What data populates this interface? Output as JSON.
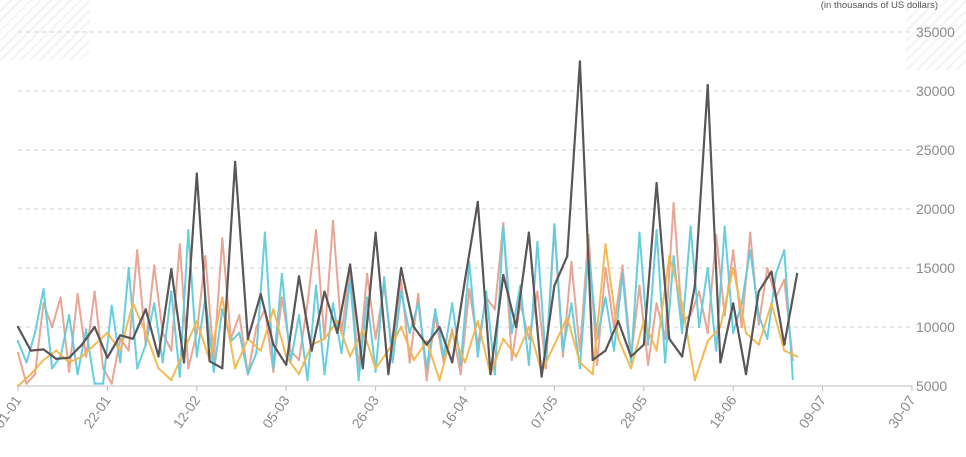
{
  "chart_data": {
    "type": "line",
    "unit_label": "(in thousands of US dollars)",
    "x_tick_labels": [
      "01-01",
      "22-01",
      "12-02",
      "05-03",
      "26-03",
      "16-04",
      "07-05",
      "28-05",
      "18-06",
      "09-07",
      "30-07"
    ],
    "xlim": [
      0,
      210
    ],
    "ylim": [
      5000,
      35000
    ],
    "y_ticks": [
      5000,
      10000,
      15000,
      20000,
      25000,
      30000,
      35000
    ],
    "grid": true,
    "legend": false,
    "series": [
      {
        "color": "#e8a090",
        "x": [
          0,
          2,
          4,
          6,
          8,
          10,
          12,
          14,
          16,
          18,
          20,
          22,
          24,
          26,
          28,
          30,
          32,
          34,
          36,
          38,
          40,
          42,
          44,
          46,
          48,
          50,
          52,
          54,
          56,
          58,
          60,
          62,
          64,
          66,
          68,
          70,
          72,
          74,
          76,
          78,
          80,
          82,
          84,
          86,
          88,
          90,
          92,
          94,
          96,
          98,
          100,
          102,
          104,
          106,
          108,
          110,
          112,
          114,
          116,
          118,
          120,
          122,
          124,
          126,
          128,
          130,
          132,
          134,
          136,
          138,
          140,
          142,
          144,
          146,
          148,
          150,
          152,
          154,
          156,
          158,
          160,
          162,
          164,
          166,
          168,
          170,
          172,
          174,
          176,
          178,
          180,
          182
        ],
        "values": [
          7800,
          5200,
          6000,
          12000,
          10000,
          12500,
          6200,
          12800,
          7500,
          13000,
          6500,
          5200,
          9000,
          8000,
          16500,
          8500,
          15200,
          9500,
          8000,
          17000,
          6500,
          9500,
          16000,
          7200,
          17500,
          9000,
          11000,
          6000,
          10000,
          11500,
          6200,
          12500,
          8000,
          7200,
          12000,
          18200,
          9000,
          19000,
          9500,
          15000,
          6500,
          14500,
          9000,
          13500,
          8000,
          14000,
          7000,
          12800,
          5500,
          11000,
          7000,
          9800,
          6000,
          13200,
          8500,
          12500,
          11500,
          18800,
          7200,
          12000,
          9000,
          13000,
          6500,
          18500,
          7500,
          15500,
          8000,
          17800,
          6800,
          15000,
          10000,
          15200,
          7500,
          13500,
          6800,
          12000,
          9000,
          20500,
          10500,
          11000,
          13000,
          9500,
          17800,
          11000,
          16500,
          10000,
          18000,
          10200,
          15000,
          12500,
          14000,
          7200
        ]
      },
      {
        "color": "#5fcbdc",
        "x": [
          0,
          2,
          4,
          6,
          8,
          10,
          12,
          14,
          16,
          18,
          20,
          22,
          24,
          26,
          28,
          30,
          32,
          34,
          36,
          38,
          40,
          42,
          44,
          46,
          48,
          50,
          52,
          54,
          56,
          58,
          60,
          62,
          64,
          66,
          68,
          70,
          72,
          74,
          76,
          78,
          80,
          82,
          84,
          86,
          88,
          90,
          92,
          94,
          96,
          98,
          100,
          102,
          104,
          106,
          108,
          110,
          112,
          114,
          116,
          118,
          120,
          122,
          124,
          126,
          128,
          130,
          132,
          134,
          136,
          138,
          140,
          142,
          144,
          146,
          148,
          150,
          152,
          154,
          156,
          158,
          160,
          162,
          164,
          166,
          168,
          170,
          172,
          174,
          176,
          178,
          180,
          182
        ],
        "values": [
          8800,
          7000,
          9500,
          13200,
          6500,
          7500,
          11000,
          6000,
          9800,
          5200,
          5200,
          11800,
          7000,
          15000,
          6500,
          8500,
          12000,
          7000,
          13000,
          5800,
          18200,
          7500,
          12500,
          6200,
          11500,
          8800,
          9500,
          6000,
          7800,
          18000,
          6500,
          14500,
          7000,
          11000,
          5500,
          13500,
          6000,
          12000,
          7800,
          14000,
          5500,
          12500,
          6200,
          14200,
          7000,
          13000,
          9500,
          12000,
          6500,
          11500,
          7500,
          12000,
          6800,
          15500,
          7500,
          13000,
          6000,
          18500,
          9500,
          13500,
          6800,
          17200,
          7200,
          18700,
          8000,
          12000,
          6500,
          16500,
          9000,
          12500,
          8000,
          14500,
          7000,
          18000,
          8500,
          18200,
          7000,
          16000,
          9500,
          18500,
          10000,
          15000,
          8000,
          18500,
          9500,
          12000,
          16500,
          11000,
          9000,
          14500,
          16500,
          5600
        ]
      },
      {
        "color": "#f2b64c",
        "x": [
          0,
          3,
          6,
          9,
          12,
          15,
          18,
          21,
          24,
          27,
          30,
          33,
          36,
          39,
          42,
          45,
          48,
          51,
          54,
          57,
          60,
          63,
          66,
          69,
          72,
          75,
          78,
          81,
          84,
          87,
          90,
          93,
          96,
          99,
          102,
          105,
          108,
          111,
          114,
          117,
          120,
          123,
          126,
          129,
          132,
          135,
          138,
          141,
          144,
          147,
          150,
          153,
          156,
          159,
          162,
          165,
          168,
          171,
          174,
          177,
          180,
          183
        ],
        "values": [
          5000,
          6000,
          7200,
          8000,
          7000,
          7500,
          8500,
          9500,
          8000,
          12000,
          9500,
          6500,
          5500,
          8000,
          10500,
          7200,
          12500,
          6500,
          9000,
          8000,
          11500,
          7500,
          6000,
          8500,
          9000,
          10500,
          7500,
          9800,
          6500,
          8000,
          10000,
          7200,
          8800,
          5500,
          9500,
          7000,
          10500,
          6000,
          9000,
          7500,
          10000,
          6200,
          8500,
          10800,
          7000,
          6000,
          17000,
          9000,
          6500,
          10500,
          8000,
          16000,
          12000,
          5500,
          8800,
          10000,
          15000,
          9500,
          8500,
          12000,
          8000,
          7500
        ]
      },
      {
        "color": "#5b5557",
        "x": [
          0,
          3,
          6,
          9,
          12,
          15,
          18,
          21,
          24,
          27,
          30,
          33,
          36,
          39,
          42,
          45,
          48,
          51,
          54,
          57,
          60,
          63,
          66,
          69,
          72,
          75,
          78,
          81,
          84,
          87,
          90,
          93,
          96,
          99,
          102,
          105,
          108,
          111,
          114,
          117,
          120,
          123,
          126,
          129,
          132,
          135,
          138,
          141,
          144,
          147,
          150,
          153,
          156,
          159,
          162,
          165,
          168,
          171,
          174,
          177,
          180,
          183
        ],
        "values": [
          10000,
          8000,
          8100,
          7300,
          7400,
          8500,
          10000,
          7400,
          9300,
          9000,
          11500,
          7500,
          14900,
          7000,
          23000,
          7100,
          6500,
          24000,
          9000,
          12800,
          8500,
          6800,
          14300,
          8000,
          13000,
          9500,
          15300,
          6500,
          18000,
          6000,
          15000,
          10000,
          8500,
          10000,
          7000,
          14000,
          20600,
          6000,
          14400,
          10000,
          18000,
          5800,
          13500,
          16000,
          32500,
          7200,
          8000,
          10500,
          7500,
          8500,
          22200,
          9000,
          7500,
          13500,
          30500,
          7000,
          12000,
          6000,
          13000,
          14700,
          8500,
          14500
        ]
      }
    ]
  }
}
